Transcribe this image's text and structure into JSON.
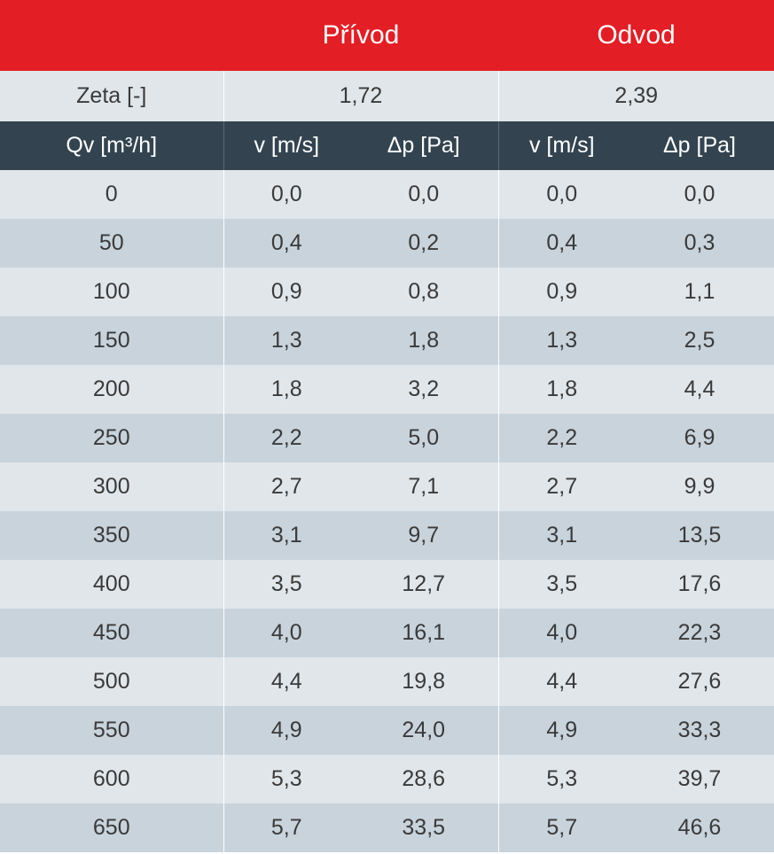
{
  "header": {
    "supply": "Přívod",
    "exhaust": "Odvod"
  },
  "zeta": {
    "label": "Zeta [-]",
    "supply": "1,72",
    "exhaust": "2,39"
  },
  "columns": [
    "Qv [m³/h]",
    "v [m/s]",
    "Δp [Pa]",
    "v [m/s]",
    "Δp [Pa]"
  ],
  "rows": [
    [
      "0",
      "0,0",
      "0,0",
      "0,0",
      "0,0"
    ],
    [
      "50",
      "0,4",
      "0,2",
      "0,4",
      "0,3"
    ],
    [
      "100",
      "0,9",
      "0,8",
      "0,9",
      "1,1"
    ],
    [
      "150",
      "1,3",
      "1,8",
      "1,3",
      "2,5"
    ],
    [
      "200",
      "1,8",
      "3,2",
      "1,8",
      "4,4"
    ],
    [
      "250",
      "2,2",
      "5,0",
      "2,2",
      "6,9"
    ],
    [
      "300",
      "2,7",
      "7,1",
      "2,7",
      "9,9"
    ],
    [
      "350",
      "3,1",
      "9,7",
      "3,1",
      "13,5"
    ],
    [
      "400",
      "3,5",
      "12,7",
      "3,5",
      "17,6"
    ],
    [
      "450",
      "4,0",
      "16,1",
      "4,0",
      "22,3"
    ],
    [
      "500",
      "4,4",
      "19,8",
      "4,4",
      "27,6"
    ],
    [
      "550",
      "4,9",
      "24,0",
      "4,9",
      "33,3"
    ],
    [
      "600",
      "5,3",
      "28,6",
      "5,3",
      "39,7"
    ],
    [
      "650",
      "5,7",
      "33,5",
      "5,7",
      "46,6"
    ]
  ]
}
